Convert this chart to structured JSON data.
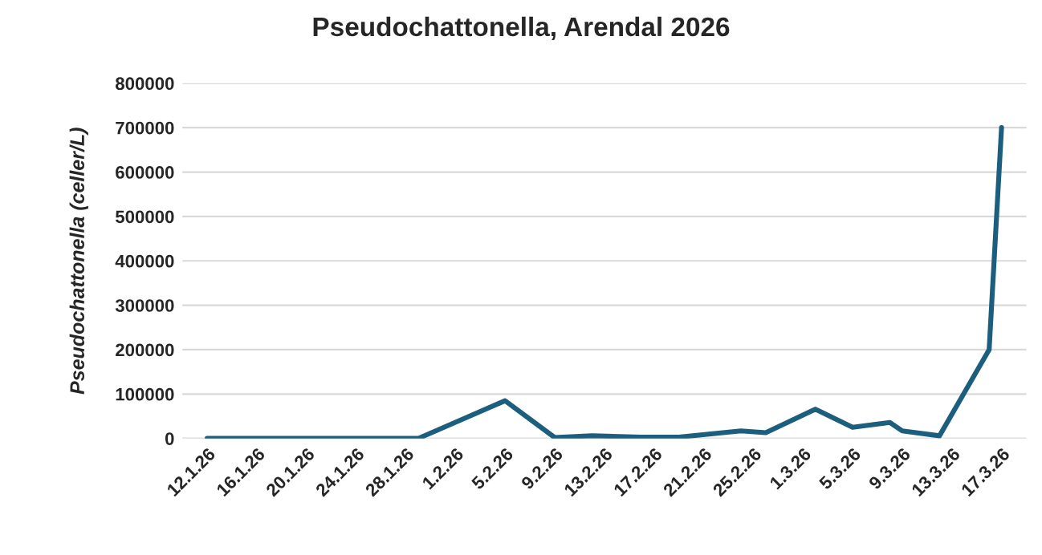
{
  "chart_data": {
    "type": "line",
    "title": "Pseudochattonella, Arendal 2026",
    "ylabel": "Pseudochattonella (celler/L)",
    "x": [
      "2026-01-12",
      "2026-01-29",
      "2026-02-05",
      "2026-02-09",
      "2026-02-12",
      "2026-02-16",
      "2026-02-19",
      "2026-02-24",
      "2026-02-26",
      "2026-03-02",
      "2026-03-05",
      "2026-03-08",
      "2026-03-09",
      "2026-03-12",
      "2026-03-16",
      "2026-03-17"
    ],
    "series": [
      {
        "color": "#1b5e7d",
        "values": [
          0,
          0,
          85000,
          2000,
          6000,
          3000,
          3000,
          17000,
          13000,
          66000,
          25000,
          36000,
          17000,
          6000,
          200000,
          700000
        ]
      }
    ],
    "xlim": [
      "2026-01-10",
      "2026-03-19"
    ],
    "xticks": [
      {
        "value": "2026-01-12",
        "label": "12.1.26"
      },
      {
        "value": "2026-01-16",
        "label": "16.1.26"
      },
      {
        "value": "2026-01-20",
        "label": "20.1.26"
      },
      {
        "value": "2026-01-24",
        "label": "24.1.26"
      },
      {
        "value": "2026-01-28",
        "label": "28.1.26"
      },
      {
        "value": "2026-02-01",
        "label": "1.2.26"
      },
      {
        "value": "2026-02-05",
        "label": "5.2.26"
      },
      {
        "value": "2026-02-09",
        "label": "9.2.26"
      },
      {
        "value": "2026-02-13",
        "label": "13.2.26"
      },
      {
        "value": "2026-02-17",
        "label": "17.2.26"
      },
      {
        "value": "2026-02-21",
        "label": "21.2.26"
      },
      {
        "value": "2026-02-25",
        "label": "25.2.26"
      },
      {
        "value": "2026-03-01",
        "label": "1.3.26"
      },
      {
        "value": "2026-03-05",
        "label": "5.3.26"
      },
      {
        "value": "2026-03-09",
        "label": "9.3.26"
      },
      {
        "value": "2026-03-13",
        "label": "13.3.26"
      },
      {
        "value": "2026-03-17",
        "label": "17.3.26"
      }
    ],
    "ylim": [
      0,
      800000
    ],
    "yticks": [
      0,
      100000,
      200000,
      300000,
      400000,
      500000,
      600000,
      700000,
      800000
    ],
    "grid": "y",
    "marker": "none",
    "line_style": "solid"
  }
}
